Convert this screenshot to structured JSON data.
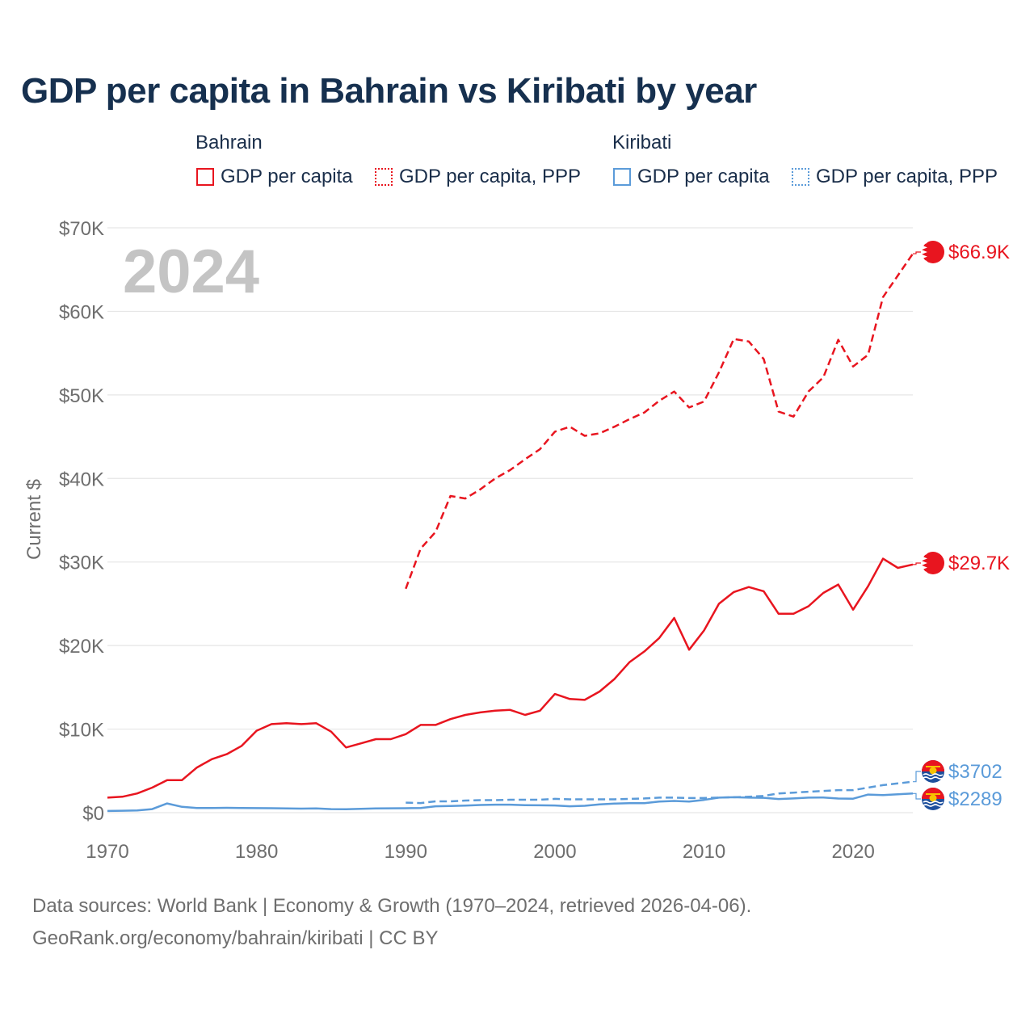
{
  "title": "GDP per capita in Bahrain vs Kiribati by year",
  "legend": {
    "groups": [
      {
        "name": "Bahrain",
        "items": [
          "GDP per capita",
          "GDP per capita, PPP"
        ]
      },
      {
        "name": "Kiribati",
        "items": [
          "GDP per capita",
          "GDP per capita, PPP"
        ]
      }
    ]
  },
  "year_watermark": "2024",
  "source_lines": [
    "Data sources: World Bank | Economy & Growth (1970–2024, retrieved 2026-04-06).",
    "GeoRank.org/economy/bahrain/kiribati | CC BY"
  ],
  "colors": {
    "bahrain": "#e8151f",
    "kiribati": "#5b9bd9",
    "grid": "#e6e6e6",
    "watermark": "#c4c4c4"
  },
  "chart_data": {
    "type": "line",
    "ylabel": "Current $",
    "xlim": [
      1970,
      2024
    ],
    "ylim": [
      0,
      70000
    ],
    "x_ticks": [
      1970,
      1980,
      1990,
      2000,
      2010,
      2020
    ],
    "x_tick_labels": [
      "1970",
      "1980",
      "1990",
      "2000",
      "2010",
      "2020"
    ],
    "y_ticks": [
      0,
      10000,
      20000,
      30000,
      40000,
      50000,
      60000,
      70000
    ],
    "y_tick_labels": [
      "$0",
      "$10K",
      "$20K",
      "$30K",
      "$40K",
      "$50K",
      "$60K",
      "$70K"
    ],
    "series": [
      {
        "name": "Bahrain GDP per capita",
        "country": "Bahrain",
        "style": "solid",
        "start_year": 1970,
        "end_label": "$29.7K",
        "values": [
          1800,
          1900,
          2300,
          3000,
          3900,
          3900,
          5400,
          6400,
          7000,
          8000,
          9800,
          10600,
          10700,
          10600,
          10700,
          9700,
          7800,
          8300,
          8800,
          8800,
          9400,
          10500,
          10500,
          11200,
          11700,
          12000,
          12200,
          12300,
          11700,
          12200,
          14200,
          13600,
          13500,
          14500,
          16000,
          18000,
          19300,
          20900,
          23300,
          19500,
          21800,
          25000,
          26400,
          27000,
          26500,
          23800,
          23800,
          24700,
          26300,
          27300,
          24300,
          27100,
          30400,
          29300,
          29700
        ]
      },
      {
        "name": "Bahrain GDP per capita, PPP",
        "country": "Bahrain",
        "style": "dashed",
        "start_year": 1990,
        "end_label": "$66.9K",
        "values": [
          26800,
          31600,
          33600,
          37900,
          37600,
          38700,
          40000,
          41000,
          42300,
          43500,
          45600,
          46200,
          45100,
          45400,
          46200,
          47100,
          47900,
          49300,
          50400,
          48500,
          49200,
          52700,
          56700,
          56400,
          54300,
          48000,
          47400,
          50400,
          52100,
          56600,
          53400,
          54800,
          61700,
          64300,
          66900
        ]
      },
      {
        "name": "Kiribati GDP per capita",
        "country": "Kiribati",
        "style": "solid",
        "start_year": 1970,
        "end_label": "$2289",
        "values": [
          200,
          230,
          260,
          430,
          1100,
          700,
          560,
          560,
          580,
          560,
          540,
          530,
          510,
          480,
          500,
          430,
          410,
          450,
          510,
          520,
          530,
          560,
          760,
          790,
          850,
          920,
          960,
          960,
          900,
          880,
          860,
          760,
          820,
          990,
          1080,
          1130,
          1140,
          1320,
          1400,
          1320,
          1530,
          1800,
          1850,
          1800,
          1780,
          1630,
          1700,
          1800,
          1820,
          1690,
          1670,
          2170,
          2100,
          2200,
          2289
        ]
      },
      {
        "name": "Kiribati GDP per capita, PPP",
        "country": "Kiribati",
        "style": "dashed",
        "start_year": 1990,
        "end_label": "$3702",
        "values": [
          1200,
          1150,
          1350,
          1350,
          1450,
          1500,
          1500,
          1550,
          1550,
          1550,
          1650,
          1600,
          1600,
          1600,
          1600,
          1650,
          1700,
          1800,
          1800,
          1750,
          1750,
          1800,
          1850,
          1900,
          2000,
          2300,
          2400,
          2500,
          2600,
          2700,
          2700,
          3000,
          3300,
          3500,
          3702
        ]
      }
    ]
  }
}
